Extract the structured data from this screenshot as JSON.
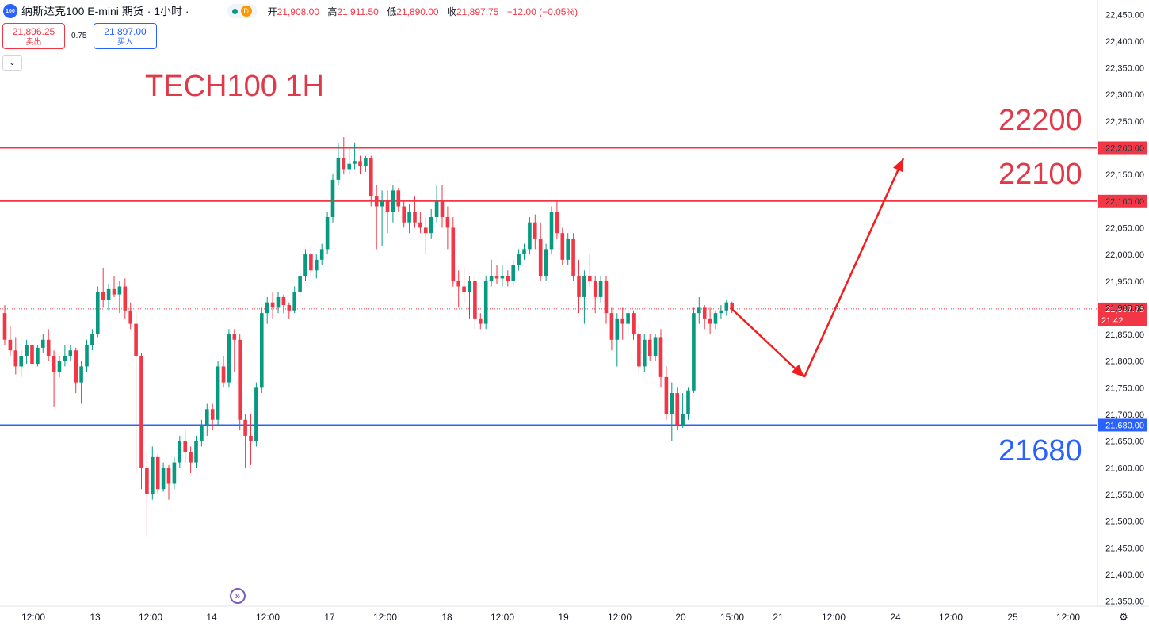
{
  "header": {
    "symbol_badge": "100",
    "title": "纳斯达克100 E-mini 期货 · 1小时 ·",
    "status_badge": "D",
    "ohlc": [
      {
        "label": "开",
        "value": "21,908.00"
      },
      {
        "label": "高",
        "value": "21,911.50"
      },
      {
        "label": "低",
        "value": "21,890.00"
      },
      {
        "label": "收",
        "value": "21,897.75"
      },
      {
        "label": "",
        "value": "−12.00 (−0.05%)"
      }
    ]
  },
  "trade_panel": {
    "sell_price": "21,896.25",
    "sell_label": "卖出",
    "spread": "0.75",
    "buy_price": "21,897.00",
    "buy_label": "买入"
  },
  "annotations": {
    "chart_title": "TECH100 1H",
    "level_high": "22200",
    "level_mid": "22100",
    "level_low": "21680"
  },
  "colors": {
    "up": "#089981",
    "down": "#f23645",
    "resistance": "#f23645",
    "support": "#2962ff",
    "arrow": "#f01e1e"
  },
  "icons": {
    "collapse": "chevron-down-icon",
    "replay": "replay-icon",
    "settings": "gear-icon"
  },
  "chart_data": {
    "type": "candlestick",
    "timeframe": "1H",
    "ylim": [
      21330,
      22500
    ],
    "y_ticks": [
      22450,
      22400,
      22350,
      22300,
      22250,
      22200,
      22150,
      22100,
      22050,
      22000,
      21950,
      21900,
      21850,
      21800,
      21750,
      21700,
      21650,
      21600,
      21550,
      21500,
      21450,
      21400,
      21350
    ],
    "x_ticks": [
      "12:00",
      "13",
      "12:00",
      "14",
      "12:00",
      "17",
      "12:00",
      "18",
      "12:00",
      "19",
      "12:00",
      "20",
      "15:00",
      "21",
      "12:00",
      "24",
      "12:00",
      "25",
      "12:00"
    ],
    "horizontal_lines": [
      {
        "price": 22200,
        "label": "22,200.00",
        "color": "#f23645"
      },
      {
        "price": 22100,
        "label": "22,100.00",
        "color": "#f23645"
      },
      {
        "price": 21680,
        "label": "21,680.00",
        "color": "#2962ff"
      }
    ],
    "last_price": {
      "value": 21897.75,
      "label": "21,897.75",
      "countdown": "21:42"
    },
    "projection": {
      "points": [
        {
          "time": "20 15:00",
          "price": 21900
        },
        {
          "time": "21 06:00",
          "price": 21770
        },
        {
          "time": "21 19:00",
          "price": 22180
        }
      ]
    },
    "ohlc": [
      [
        21890,
        21905,
        21830,
        21840
      ],
      [
        21840,
        21865,
        21810,
        21820
      ],
      [
        21820,
        21845,
        21775,
        21790
      ],
      [
        21790,
        21820,
        21770,
        21810
      ],
      [
        21810,
        21840,
        21795,
        21830
      ],
      [
        21830,
        21845,
        21780,
        21795
      ],
      [
        21795,
        21830,
        21790,
        21825
      ],
      [
        21825,
        21850,
        21815,
        21840
      ],
      [
        21840,
        21860,
        21800,
        21810
      ],
      [
        21810,
        21820,
        21715,
        21780
      ],
      [
        21780,
        21810,
        21770,
        21800
      ],
      [
        21800,
        21830,
        21790,
        21810
      ],
      [
        21810,
        21830,
        21800,
        21820
      ],
      [
        21820,
        21825,
        21740,
        21760
      ],
      [
        21760,
        21800,
        21720,
        21790
      ],
      [
        21790,
        21840,
        21780,
        21830
      ],
      [
        21830,
        21860,
        21820,
        21850
      ],
      [
        21850,
        21940,
        21845,
        21930
      ],
      [
        21930,
        21975,
        21900,
        21915
      ],
      [
        21915,
        21945,
        21895,
        21935
      ],
      [
        21935,
        21960,
        21920,
        21925
      ],
      [
        21925,
        21950,
        21890,
        21940
      ],
      [
        21940,
        21955,
        21880,
        21895
      ],
      [
        21895,
        21910,
        21860,
        21870
      ],
      [
        21870,
        21890,
        21590,
        21810
      ],
      [
        21810,
        21815,
        21560,
        21600
      ],
      [
        21600,
        21630,
        21470,
        21550
      ],
      [
        21550,
        21640,
        21540,
        21620
      ],
      [
        21620,
        21625,
        21550,
        21560
      ],
      [
        21560,
        21610,
        21555,
        21600
      ],
      [
        21600,
        21605,
        21540,
        21570
      ],
      [
        21570,
        21620,
        21560,
        21610
      ],
      [
        21610,
        21660,
        21600,
        21650
      ],
      [
        21650,
        21670,
        21610,
        21630
      ],
      [
        21630,
        21640,
        21590,
        21610
      ],
      [
        21610,
        21660,
        21600,
        21650
      ],
      [
        21650,
        21690,
        21640,
        21680
      ],
      [
        21680,
        21720,
        21660,
        21710
      ],
      [
        21710,
        21720,
        21670,
        21690
      ],
      [
        21690,
        21800,
        21680,
        21790
      ],
      [
        21790,
        21810,
        21750,
        21760
      ],
      [
        21760,
        21860,
        21750,
        21850
      ],
      [
        21850,
        21860,
        21780,
        21840
      ],
      [
        21840,
        21850,
        21670,
        21690
      ],
      [
        21690,
        21700,
        21600,
        21660
      ],
      [
        21660,
        21700,
        21605,
        21650
      ],
      [
        21650,
        21760,
        21640,
        21750
      ],
      [
        21750,
        21900,
        21740,
        21890
      ],
      [
        21890,
        21920,
        21870,
        21910
      ],
      [
        21910,
        21930,
        21880,
        21900
      ],
      [
        21900,
        21930,
        21890,
        21920
      ],
      [
        21920,
        21925,
        21890,
        21905
      ],
      [
        21905,
        21910,
        21880,
        21895
      ],
      [
        21895,
        21940,
        21890,
        21930
      ],
      [
        21930,
        21970,
        21920,
        21960
      ],
      [
        21960,
        22010,
        21950,
        22000
      ],
      [
        22000,
        22015,
        21960,
        21970
      ],
      [
        21970,
        22000,
        21955,
        21990
      ],
      [
        21990,
        22020,
        21980,
        22010
      ],
      [
        22010,
        22080,
        22000,
        22070
      ],
      [
        22070,
        22150,
        22060,
        22140
      ],
      [
        22140,
        22210,
        22130,
        22180
      ],
      [
        22180,
        22220,
        22150,
        22160
      ],
      [
        22160,
        22200,
        22150,
        22170
      ],
      [
        22170,
        22210,
        22160,
        22175
      ],
      [
        22175,
        22185,
        22150,
        22165
      ],
      [
        22165,
        22185,
        22155,
        22180
      ],
      [
        22180,
        22185,
        22090,
        22110
      ],
      [
        22110,
        22130,
        22010,
        22090
      ],
      [
        22090,
        22120,
        22015,
        22100
      ],
      [
        22100,
        22120,
        22040,
        22080
      ],
      [
        22080,
        22130,
        22060,
        22120
      ],
      [
        22120,
        22125,
        22080,
        22090
      ],
      [
        22090,
        22100,
        22050,
        22060
      ],
      [
        22060,
        22095,
        22040,
        22080
      ],
      [
        22080,
        22110,
        22050,
        22060
      ],
      [
        22060,
        22080,
        22040,
        22050
      ],
      [
        22050,
        22070,
        22000,
        22040
      ],
      [
        22040,
        22085,
        22030,
        22070
      ],
      [
        22070,
        22130,
        22060,
        22100
      ],
      [
        22100,
        22130,
        22050,
        22070
      ],
      [
        22070,
        22090,
        22010,
        22050
      ],
      [
        22050,
        22070,
        21940,
        21950
      ],
      [
        21950,
        21970,
        21900,
        21940
      ],
      [
        21940,
        21975,
        21910,
        21930
      ],
      [
        21930,
        21960,
        21880,
        21950
      ],
      [
        21950,
        21960,
        21860,
        21880
      ],
      [
        21880,
        21890,
        21860,
        21870
      ],
      [
        21870,
        21960,
        21860,
        21950
      ],
      [
        21950,
        21990,
        21940,
        21960
      ],
      [
        21960,
        21980,
        21945,
        21955
      ],
      [
        21955,
        21980,
        21940,
        21960
      ],
      [
        21960,
        21970,
        21940,
        21950
      ],
      [
        21950,
        21990,
        21940,
        21980
      ],
      [
        21980,
        22010,
        21970,
        22000
      ],
      [
        22000,
        22020,
        21990,
        22010
      ],
      [
        22010,
        22070,
        22000,
        22060
      ],
      [
        22060,
        22075,
        22010,
        22030
      ],
      [
        22030,
        22060,
        21950,
        21960
      ],
      [
        21960,
        22020,
        21950,
        22010
      ],
      [
        22010,
        22090,
        22000,
        22080
      ],
      [
        22080,
        22100,
        22030,
        22040
      ],
      [
        22040,
        22050,
        21980,
        21990
      ],
      [
        21990,
        22040,
        21980,
        22030
      ],
      [
        22030,
        22040,
        21950,
        21960
      ],
      [
        21960,
        21990,
        21890,
        21920
      ],
      [
        21920,
        21970,
        21870,
        21960
      ],
      [
        21960,
        22000,
        21940,
        21950
      ],
      [
        21950,
        21960,
        21890,
        21920
      ],
      [
        21920,
        21960,
        21910,
        21950
      ],
      [
        21950,
        21960,
        21870,
        21890
      ],
      [
        21890,
        21900,
        21820,
        21840
      ],
      [
        21840,
        21890,
        21790,
        21880
      ],
      [
        21880,
        21900,
        21840,
        21870
      ],
      [
        21870,
        21900,
        21850,
        21890
      ],
      [
        21890,
        21895,
        21840,
        21850
      ],
      [
        21850,
        21870,
        21780,
        21790
      ],
      [
        21790,
        21850,
        21780,
        21840
      ],
      [
        21840,
        21850,
        21800,
        21810
      ],
      [
        21810,
        21850,
        21800,
        21845
      ],
      [
        21845,
        21860,
        21750,
        21770
      ],
      [
        21770,
        21790,
        21690,
        21700
      ],
      [
        21700,
        21760,
        21650,
        21740
      ],
      [
        21740,
        21750,
        21670,
        21680
      ],
      [
        21680,
        21740,
        21675,
        21700
      ],
      [
        21700,
        21750,
        21690,
        21745
      ],
      [
        21745,
        21900,
        21740,
        21890
      ],
      [
        21890,
        21920,
        21870,
        21900
      ],
      [
        21900,
        21905,
        21860,
        21880
      ],
      [
        21880,
        21900,
        21850,
        21870
      ],
      [
        21870,
        21895,
        21860,
        21890
      ],
      [
        21890,
        21905,
        21880,
        21895
      ],
      [
        21895,
        21915,
        21885,
        21910
      ],
      [
        21908,
        21911.5,
        21890,
        21897.75
      ]
    ]
  }
}
